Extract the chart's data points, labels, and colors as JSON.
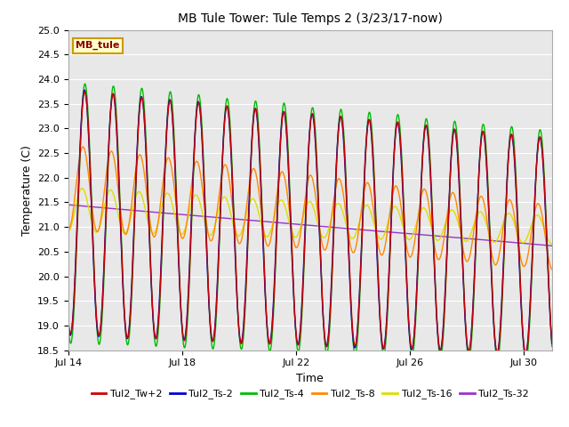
{
  "title": "MB Tule Tower: Tule Temps 2 (3/23/17-now)",
  "xlabel": "Time",
  "ylabel": "Temperature (C)",
  "ylim": [
    18.5,
    25.0
  ],
  "yticks": [
    18.5,
    19.0,
    19.5,
    20.0,
    20.5,
    21.0,
    21.5,
    22.0,
    22.5,
    23.0,
    23.5,
    24.0,
    24.5,
    25.0
  ],
  "xtick_labels": [
    "Jul 14",
    "Jul 18",
    "Jul 22",
    "Jul 26",
    "Jul 30"
  ],
  "xtick_positions": [
    0,
    4,
    8,
    12,
    16
  ],
  "xlim": [
    0,
    17
  ],
  "background_color": "#e8e8e8",
  "grid_color": "#ffffff",
  "legend_label": "MB_tule",
  "series": [
    {
      "name": "Tul2_Tw+2",
      "color": "#cc0000"
    },
    {
      "name": "Tul2_Ts-2",
      "color": "#0000cc"
    },
    {
      "name": "Tul2_Ts-4",
      "color": "#00bb00"
    },
    {
      "name": "Tul2_Ts-8",
      "color": "#ff8800"
    },
    {
      "name": "Tul2_Ts-16",
      "color": "#dddd00"
    },
    {
      "name": "Tul2_Ts-32",
      "color": "#9933cc"
    }
  ]
}
